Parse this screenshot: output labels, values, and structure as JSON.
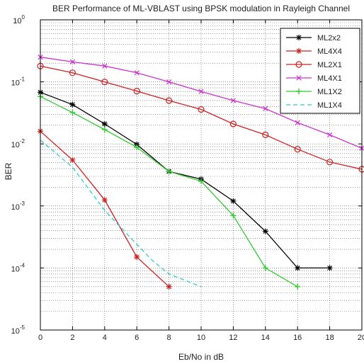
{
  "chart_data": {
    "type": "line",
    "title": "BER Performance of ML-VBLAST using BPSK modulation in Rayleigh Channel",
    "xlabel": "Eb/No in dB",
    "ylabel": "BER",
    "xlim": [
      0,
      20
    ],
    "ylim": [
      1e-05,
      1
    ],
    "yscale": "log",
    "grid": true,
    "legend_position": "top-right",
    "x_ticks": [
      0,
      2,
      4,
      6,
      8,
      10,
      12,
      14,
      16,
      18,
      20
    ],
    "y_ticks": [
      {
        "value": 1,
        "base": "10",
        "exp": "0"
      },
      {
        "value": 0.1,
        "base": "10",
        "exp": "-1"
      },
      {
        "value": 0.01,
        "base": "10",
        "exp": "-2"
      },
      {
        "value": 0.001,
        "base": "10",
        "exp": "-3"
      },
      {
        "value": 0.0001,
        "base": "10",
        "exp": "-4"
      },
      {
        "value": 1e-05,
        "base": "10",
        "exp": "-5"
      }
    ],
    "series": [
      {
        "name": "ML2x2",
        "color": "#000000",
        "marker": "star",
        "style": "solid",
        "x": [
          0,
          2,
          4,
          6,
          8,
          10,
          12,
          14,
          16,
          18
        ],
        "y": [
          0.068,
          0.043,
          0.021,
          0.0098,
          0.0036,
          0.0027,
          0.0012,
          0.00039,
          0.0001,
          0.0001
        ]
      },
      {
        "name": "ML4X4",
        "color": "#cc2222",
        "marker": "star",
        "style": "solid",
        "x": [
          0,
          2,
          4,
          6,
          8
        ],
        "y": [
          0.016,
          0.0055,
          0.00125,
          0.00015,
          5e-05
        ]
      },
      {
        "name": "ML2X1",
        "color": "#cc2222",
        "marker": "circle",
        "style": "solid",
        "x": [
          0,
          2,
          4,
          6,
          8,
          10,
          12,
          14,
          16,
          18,
          20
        ],
        "y": [
          0.18,
          0.14,
          0.1,
          0.071,
          0.05,
          0.036,
          0.021,
          0.014,
          0.0082,
          0.0051,
          0.0039
        ]
      },
      {
        "name": "ML4X1",
        "color": "#cc33cc",
        "marker": "x",
        "style": "solid",
        "x": [
          0,
          2,
          4,
          6,
          8,
          10,
          12,
          14,
          16,
          18,
          20
        ],
        "y": [
          0.25,
          0.21,
          0.18,
          0.14,
          0.1,
          0.07,
          0.05,
          0.037,
          0.022,
          0.014,
          0.0085
        ]
      },
      {
        "name": "ML1X2",
        "color": "#33cc33",
        "marker": "plus",
        "style": "solid",
        "x": [
          0,
          2,
          4,
          6,
          8,
          10,
          12,
          14,
          16
        ],
        "y": [
          0.058,
          0.032,
          0.017,
          0.0088,
          0.0036,
          0.0025,
          0.0007,
          0.0001,
          5e-05
        ]
      },
      {
        "name": "ML1X4",
        "color": "#33cccc",
        "marker": "none",
        "style": "dashed",
        "x": [
          0,
          2,
          4,
          6,
          7,
          8,
          10
        ],
        "y": [
          0.0115,
          0.0042,
          0.00085,
          0.00024,
          0.00013,
          8e-05,
          5e-05
        ]
      }
    ]
  }
}
